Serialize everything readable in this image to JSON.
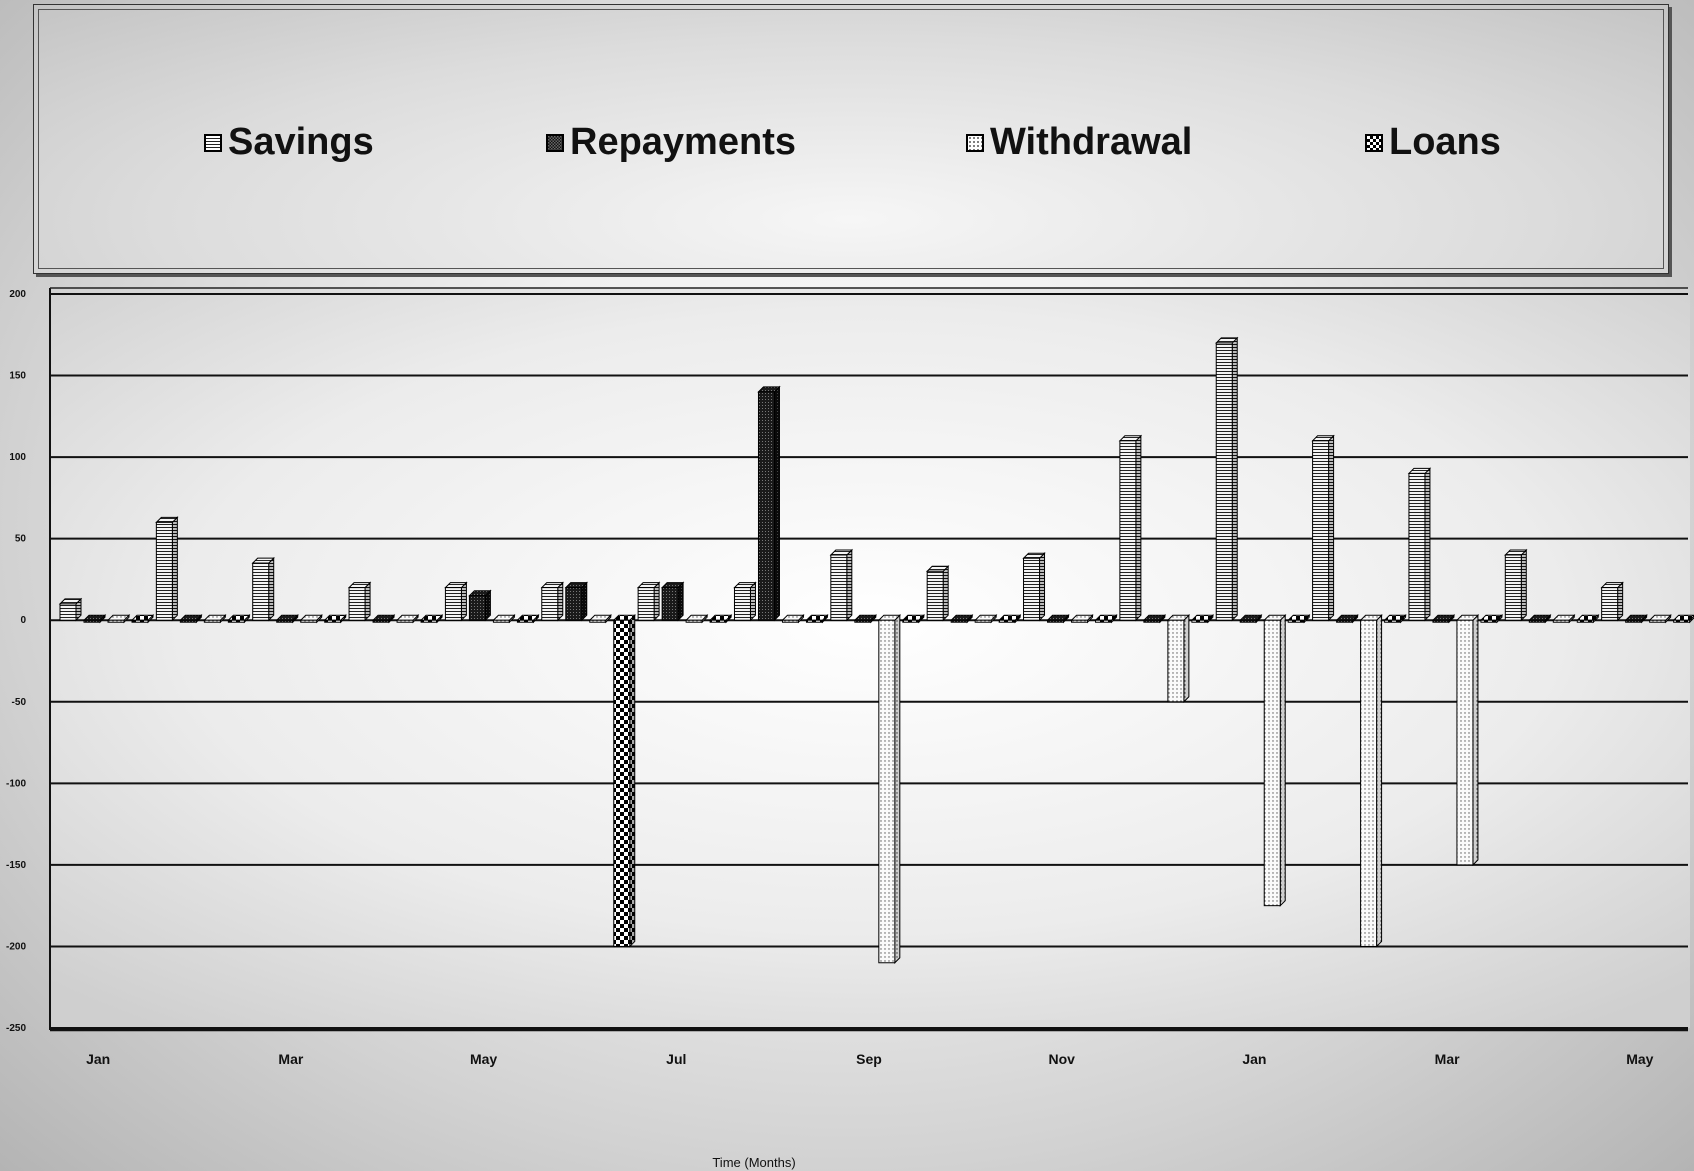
{
  "chart_data": {
    "type": "bar",
    "title": "",
    "xlabel": "Time (Months)",
    "ylabel": "",
    "ylim": [
      -250,
      200
    ],
    "yticks": [
      200,
      150,
      100,
      50,
      0,
      -50,
      -100,
      -150,
      -200,
      -250
    ],
    "grid": true,
    "legend_position": "top",
    "categories": [
      "Jan",
      "Feb",
      "Mar",
      "Apr",
      "May",
      "Jun",
      "Jul",
      "Aug",
      "Sep",
      "Oct",
      "Nov",
      "Dec",
      "Jan",
      "Feb",
      "Mar",
      "Apr",
      "May"
    ],
    "category_labels": [
      "Jan",
      "",
      "Mar",
      "",
      "May",
      "",
      "Jul",
      "",
      "Sep",
      "",
      "Nov",
      "",
      "Jan",
      "",
      "Mar",
      "",
      "May"
    ],
    "series": [
      {
        "name": "Savings",
        "pattern": "hlines",
        "values": [
          10,
          60,
          35,
          20,
          20,
          20,
          20,
          20,
          40,
          30,
          38,
          110,
          170,
          110,
          90,
          40,
          20
        ]
      },
      {
        "name": "Repayments",
        "pattern": "dark",
        "values": [
          0,
          0,
          0,
          0,
          15,
          20,
          20,
          140,
          0,
          0,
          0,
          0,
          0,
          0,
          0,
          0,
          0
        ]
      },
      {
        "name": "Withdrawal",
        "pattern": "dots",
        "values": [
          0,
          0,
          0,
          0,
          0,
          0,
          0,
          0,
          -210,
          0,
          0,
          -50,
          -175,
          -200,
          -150,
          0,
          0
        ]
      },
      {
        "name": "Loans",
        "pattern": "checker",
        "values": [
          0,
          0,
          0,
          0,
          0,
          -200,
          0,
          0,
          0,
          0,
          0,
          0,
          0,
          0,
          0,
          0,
          0
        ]
      }
    ]
  }
}
